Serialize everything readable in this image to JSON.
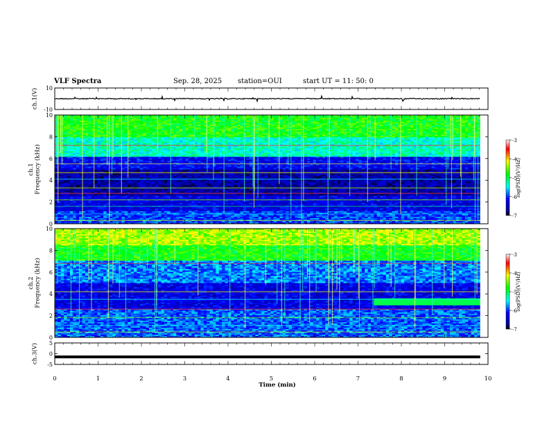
{
  "header": {
    "title": "VLF Spectra",
    "date": "Sep. 28, 2025",
    "station": "station=OUI",
    "start": "start  UT =   11: 50: 0"
  },
  "chart_data": [
    {
      "type": "line",
      "panel": "ch.1 waveform",
      "ylabel": "ch.1(V)",
      "yticks": [
        "10",
        "-10"
      ],
      "ylim": [
        -10,
        10
      ],
      "x": [
        0,
        10
      ],
      "level": 0,
      "xlim": [
        0,
        10
      ]
    },
    {
      "type": "heatmap",
      "panel": "ch.1 spectrogram",
      "ylabel": "ch.1\nFrequency  (kHz)",
      "yticks": [
        "0",
        "2",
        "4",
        "6",
        "8",
        "10"
      ],
      "ylim": [
        0,
        10
      ],
      "xlim": [
        0,
        10
      ],
      "colorbar": {
        "label": "log(PSD)(V²/Hz)",
        "ticks": [
          "-3",
          "-4",
          "-5",
          "-6",
          "-7"
        ],
        "range": [
          -7,
          -3
        ]
      }
    },
    {
      "type": "heatmap",
      "panel": "ch.2 spectrogram",
      "ylabel": "ch.2\nFrequency  (kHz)",
      "yticks": [
        "0",
        "2",
        "4",
        "6",
        "8",
        "10"
      ],
      "ylim": [
        0,
        10
      ],
      "xlim": [
        0,
        10
      ],
      "colorbar": {
        "label": "log(PSD)(V²/Hz)",
        "ticks": [
          "-3",
          "-4",
          "-5",
          "-6",
          "-7"
        ],
        "range": [
          -7,
          -3
        ]
      }
    },
    {
      "type": "line",
      "panel": "ch.3 waveform",
      "ylabel": "ch.3(V)",
      "yticks": [
        "5",
        "0",
        "-5"
      ],
      "ylim": [
        -5,
        5
      ],
      "level": -1.5,
      "xlim": [
        0,
        10
      ]
    }
  ],
  "xaxis": {
    "label": "Time  (min)",
    "ticks": [
      "0",
      "1",
      "2",
      "3",
      "4",
      "5",
      "6",
      "7",
      "8",
      "9",
      "10"
    ]
  }
}
